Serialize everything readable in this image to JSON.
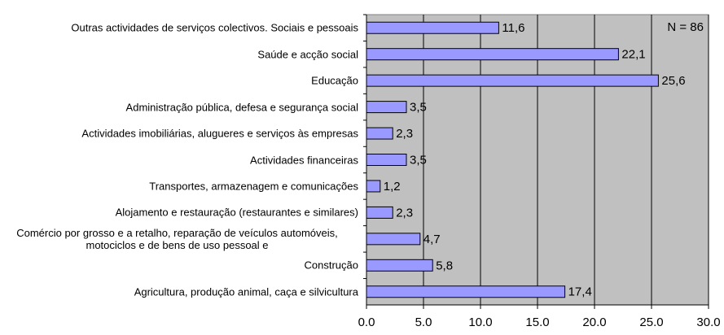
{
  "chart_data": {
    "type": "bar",
    "orientation": "horizontal",
    "categories": [
      "Outras actividades de serviços colectivos. Sociais e pessoais",
      "Saúde e  acção social",
      "Educação",
      "Administração pública, defesa e segurança social",
      "Actividades imobiliárias, alugueres e serviços às empresas",
      "Actividades financeiras",
      "Transportes, armazenagem e comunicações",
      "Alojamento e restauração (restaurantes e similares)",
      "Comércio por grosso e a retalho, reparação de veículos automóveis, motociclos e de bens de uso pessoal e",
      "Construção",
      "Agricultura, produção animal, caça e silvicultura"
    ],
    "values": [
      11.6,
      22.1,
      25.6,
      3.5,
      2.3,
      3.5,
      1.2,
      2.3,
      4.7,
      5.8,
      17.4
    ],
    "value_labels": [
      "11,6",
      "22,1",
      "25,6",
      "3,5",
      "2,3",
      "3,5",
      "1,2",
      "2,3",
      "4,7",
      "5,8",
      "17,4"
    ],
    "color": "#9999ff",
    "plot_background": "#c0c0c0",
    "xlim": [
      0,
      30
    ],
    "xticks": [
      {
        "value": 0,
        "label": "0.0"
      },
      {
        "value": 5,
        "label": "5.0"
      },
      {
        "value": 10,
        "label": "10.0"
      },
      {
        "value": 15,
        "label": "15.0"
      },
      {
        "value": 20,
        "label": "20.0"
      },
      {
        "value": 25,
        "label": "25.0"
      },
      {
        "value": 30,
        "label": "30.0"
      }
    ],
    "grid": true,
    "annotation": "N = 86"
  }
}
